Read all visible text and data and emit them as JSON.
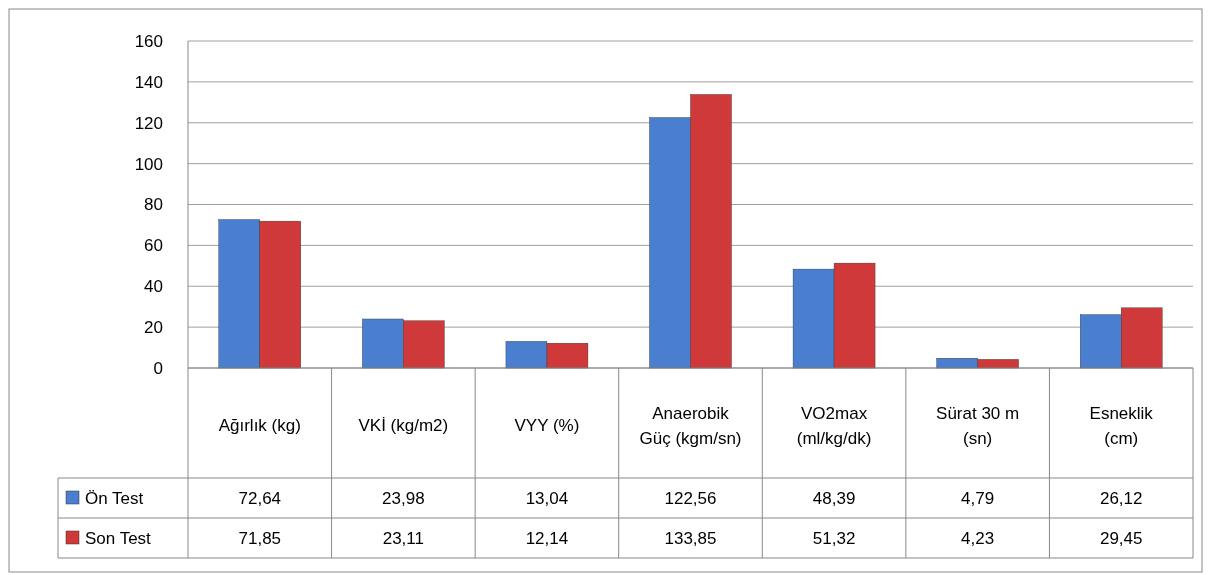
{
  "chart_data": {
    "type": "bar",
    "categories": [
      "Ağırlık (kg)",
      "VKİ (kg/m2)",
      "VYY (%)",
      "Anaerobik Güç (kgm/sn)",
      "VO2max (ml/kg/dk)",
      "Sürat 30 m (sn)",
      "Esneklik (cm)"
    ],
    "series": [
      {
        "name": "Ön Test",
        "color": "#4a7fcf",
        "values": [
          72.64,
          23.98,
          13.04,
          122.56,
          48.39,
          4.79,
          26.12
        ],
        "value_labels": [
          "72,64",
          "23,98",
          "13,04",
          "122,56",
          "48,39",
          "4,79",
          "26,12"
        ]
      },
      {
        "name": "Son Test",
        "color": "#d0393a",
        "values": [
          71.85,
          23.11,
          12.14,
          133.85,
          51.32,
          4.23,
          29.45
        ],
        "value_labels": [
          "71,85",
          "23,11",
          "12,14",
          "133,85",
          "51,32",
          "4,23",
          "29,45"
        ]
      }
    ],
    "ylim": [
      0,
      160
    ],
    "yticks": [
      0,
      20,
      40,
      60,
      80,
      100,
      120,
      140,
      160
    ],
    "grid": "y",
    "legend": "bottom left"
  }
}
